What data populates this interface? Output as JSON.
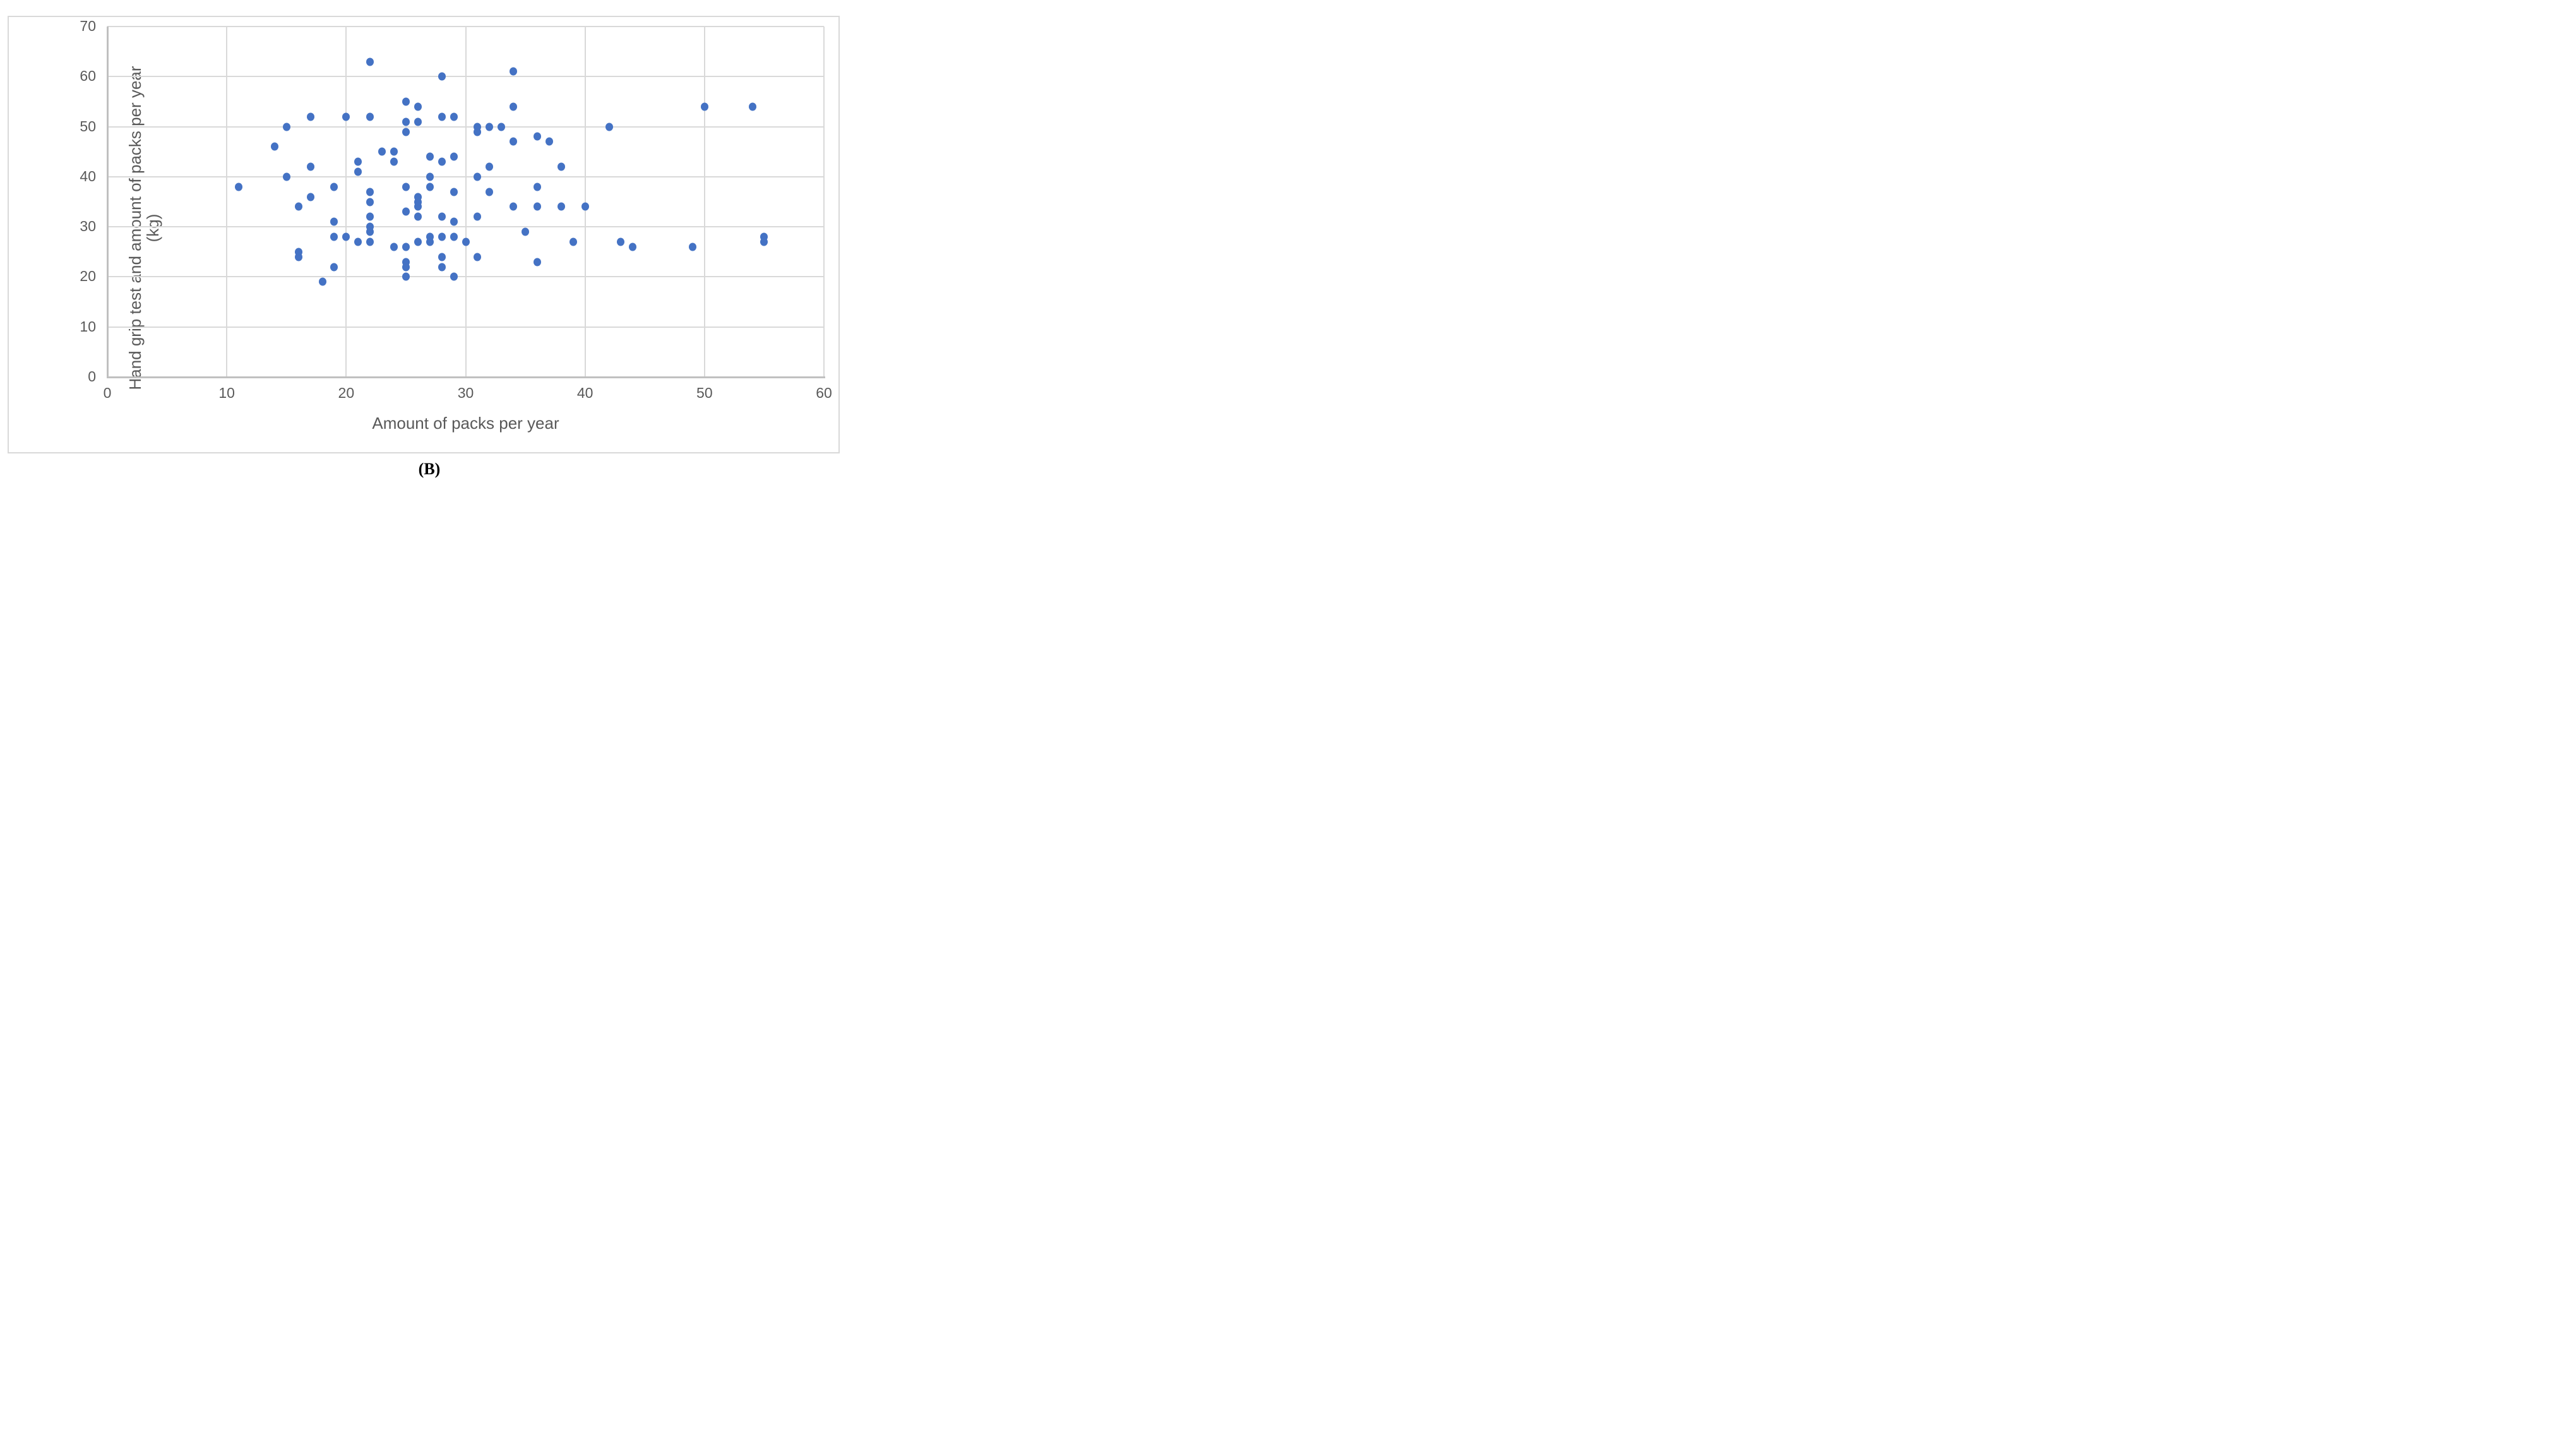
{
  "figure": {
    "caption": "(B)"
  },
  "chart_data": {
    "type": "scatter",
    "title": "",
    "xlabel": "Amount of packs per year",
    "ylabel_line1": "Hand grip test and amount of packs per year",
    "ylabel_line2": "(kg)",
    "xlim": [
      0,
      60
    ],
    "ylim": [
      0,
      70
    ],
    "xticks": [
      0,
      10,
      20,
      30,
      40,
      50,
      60
    ],
    "yticks": [
      0,
      10,
      20,
      30,
      40,
      50,
      60,
      70
    ],
    "grid": true,
    "legend_position": "none",
    "marker_color": "#4472C4",
    "gridline_color": "#D9D9D9",
    "axis_color": "#C0C0C0",
    "tick_label_color": "#595959",
    "points": [
      [
        11,
        38
      ],
      [
        14,
        46
      ],
      [
        15,
        50
      ],
      [
        15,
        40
      ],
      [
        16,
        34
      ],
      [
        16,
        25
      ],
      [
        16,
        24
      ],
      [
        17,
        52
      ],
      [
        17,
        42
      ],
      [
        17,
        36
      ],
      [
        18,
        19
      ],
      [
        19,
        38
      ],
      [
        19,
        31
      ],
      [
        19,
        28
      ],
      [
        19,
        22
      ],
      [
        20,
        52
      ],
      [
        20,
        28
      ],
      [
        21,
        43
      ],
      [
        21,
        41
      ],
      [
        21,
        27
      ],
      [
        22,
        63
      ],
      [
        22,
        52
      ],
      [
        22,
        37
      ],
      [
        22,
        35
      ],
      [
        22,
        32
      ],
      [
        22,
        30
      ],
      [
        22,
        29
      ],
      [
        22,
        27
      ],
      [
        23,
        45
      ],
      [
        24,
        45
      ],
      [
        24,
        43
      ],
      [
        24,
        26
      ],
      [
        25,
        55
      ],
      [
        25,
        51
      ],
      [
        25,
        49
      ],
      [
        25,
        38
      ],
      [
        25,
        33
      ],
      [
        25,
        26
      ],
      [
        25,
        23
      ],
      [
        25,
        22
      ],
      [
        25,
        20
      ],
      [
        26,
        54
      ],
      [
        26,
        51
      ],
      [
        26,
        36
      ],
      [
        26,
        35
      ],
      [
        26,
        34
      ],
      [
        26,
        32
      ],
      [
        26,
        27
      ],
      [
        27,
        44
      ],
      [
        27,
        40
      ],
      [
        27,
        38
      ],
      [
        27,
        28
      ],
      [
        27,
        27
      ],
      [
        28,
        60
      ],
      [
        28,
        52
      ],
      [
        28,
        43
      ],
      [
        28,
        32
      ],
      [
        28,
        28
      ],
      [
        28,
        24
      ],
      [
        28,
        22
      ],
      [
        29,
        52
      ],
      [
        29,
        44
      ],
      [
        29,
        37
      ],
      [
        29,
        31
      ],
      [
        29,
        28
      ],
      [
        29,
        20
      ],
      [
        30,
        27
      ],
      [
        31,
        50
      ],
      [
        31,
        49
      ],
      [
        31,
        40
      ],
      [
        31,
        32
      ],
      [
        31,
        24
      ],
      [
        32,
        50
      ],
      [
        32,
        42
      ],
      [
        32,
        37
      ],
      [
        33,
        50
      ],
      [
        34,
        61
      ],
      [
        34,
        54
      ],
      [
        34,
        47
      ],
      [
        34,
        34
      ],
      [
        35,
        29
      ],
      [
        36,
        48
      ],
      [
        36,
        38
      ],
      [
        36,
        34
      ],
      [
        36,
        23
      ],
      [
        37,
        47
      ],
      [
        38,
        42
      ],
      [
        38,
        34
      ],
      [
        39,
        27
      ],
      [
        40,
        34
      ],
      [
        42,
        50
      ],
      [
        43,
        27
      ],
      [
        44,
        26
      ],
      [
        49,
        26
      ],
      [
        50,
        54
      ],
      [
        54,
        54
      ],
      [
        55,
        28
      ],
      [
        55,
        27
      ]
    ]
  }
}
